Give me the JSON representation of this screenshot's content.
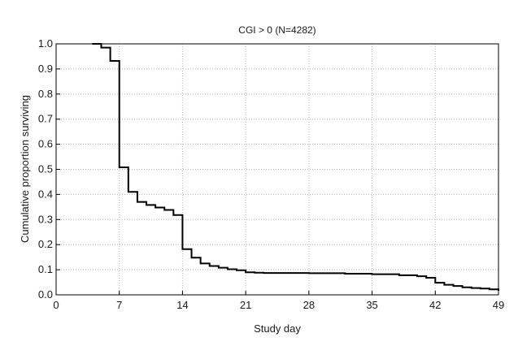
{
  "chart_data": {
    "type": "line",
    "subtype": "step",
    "title": "CGI > 0 (N=4282)",
    "xlabel": "Study day",
    "ylabel": "Cumulative proportion surviving",
    "xlim": [
      0,
      49
    ],
    "ylim": [
      0,
      1.0
    ],
    "xticks": [
      0,
      7,
      14,
      21,
      28,
      35,
      42,
      49
    ],
    "yticks": [
      0.0,
      0.1,
      0.2,
      0.3,
      0.4,
      0.5,
      0.6,
      0.7,
      0.8,
      0.9,
      1.0
    ],
    "ytick_labels": [
      "0.0",
      "0.1",
      "0.2",
      "0.3",
      "0.4",
      "0.5",
      "0.6",
      "0.7",
      "0.8",
      "0.9",
      "1.0"
    ],
    "grid": true,
    "legend": "none",
    "series": [
      {
        "x": [
          4,
          5,
          6,
          7,
          8,
          9,
          10,
          11,
          12,
          13,
          14,
          15,
          16,
          17,
          18,
          19,
          20,
          21,
          22,
          23,
          28,
          32,
          35,
          38,
          40,
          41,
          42,
          43,
          44,
          45,
          46,
          47,
          48,
          49
        ],
        "y": [
          1.0,
          0.985,
          0.932,
          0.508,
          0.41,
          0.37,
          0.358,
          0.348,
          0.338,
          0.318,
          0.182,
          0.148,
          0.125,
          0.115,
          0.108,
          0.102,
          0.098,
          0.09,
          0.088,
          0.087,
          0.086,
          0.084,
          0.082,
          0.078,
          0.074,
          0.068,
          0.048,
          0.04,
          0.035,
          0.03,
          0.027,
          0.025,
          0.022,
          0.016
        ]
      }
    ]
  }
}
